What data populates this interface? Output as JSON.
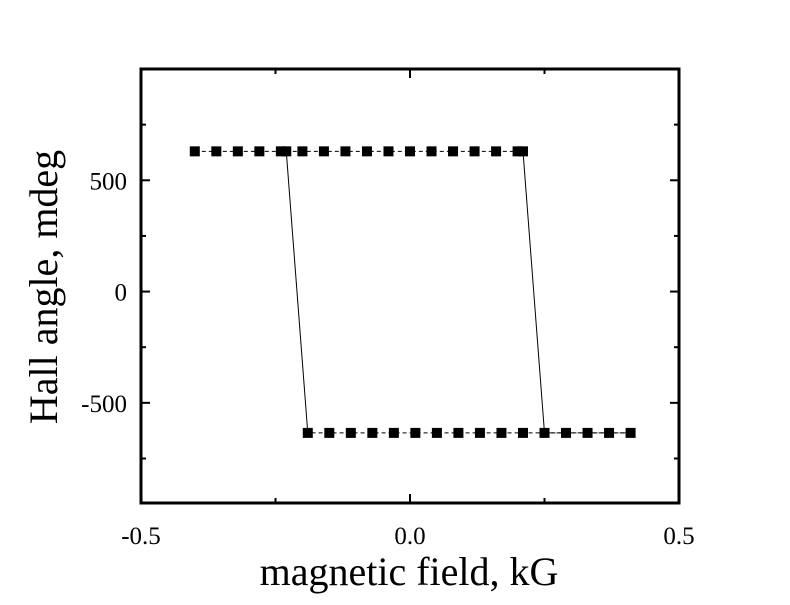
{
  "chart_data": {
    "type": "scatter",
    "title": "",
    "xlabel": "magnetic field, kG",
    "ylabel": "Hall angle, mdeg",
    "xlim": [
      -0.5,
      0.5
    ],
    "ylim": [
      -950,
      1000
    ],
    "x_ticks": [
      -0.5,
      0.0,
      0.5
    ],
    "x_tick_labels": [
      "-0.5",
      "0.0",
      "0.5"
    ],
    "y_ticks": [
      -500,
      0,
      500
    ],
    "y_tick_labels": [
      "-500",
      "0",
      "500"
    ],
    "grid": false,
    "legend": "none",
    "marker": "square",
    "colors": {
      "line": "#000000",
      "marker": "#000000",
      "frame": "#000000"
    },
    "series": [
      {
        "values": [
          {
            "x": -0.4,
            "y": 630
          },
          {
            "x": -0.36,
            "y": 630
          },
          {
            "x": -0.32,
            "y": 630
          },
          {
            "x": -0.28,
            "y": 630
          },
          {
            "x": -0.24,
            "y": 630
          },
          {
            "x": -0.2,
            "y": 630
          },
          {
            "x": -0.16,
            "y": 630
          },
          {
            "x": -0.12,
            "y": 630
          },
          {
            "x": -0.08,
            "y": 630
          },
          {
            "x": -0.04,
            "y": 630
          },
          {
            "x": 0.0,
            "y": 630
          },
          {
            "x": 0.04,
            "y": 630
          },
          {
            "x": 0.08,
            "y": 630
          },
          {
            "x": 0.12,
            "y": 630
          },
          {
            "x": 0.16,
            "y": 630
          },
          {
            "x": 0.2,
            "y": 630
          },
          {
            "x": 0.21,
            "y": 630
          },
          {
            "x": 0.25,
            "y": -635
          },
          {
            "x": 0.29,
            "y": -635
          },
          {
            "x": 0.33,
            "y": -635
          },
          {
            "x": 0.37,
            "y": -635
          },
          {
            "x": 0.41,
            "y": -635
          },
          {
            "x": 0.21,
            "y": -635
          },
          {
            "x": 0.17,
            "y": -635
          },
          {
            "x": 0.13,
            "y": -635
          },
          {
            "x": 0.09,
            "y": -635
          },
          {
            "x": 0.05,
            "y": -635
          },
          {
            "x": 0.01,
            "y": -635
          },
          {
            "x": -0.03,
            "y": -635
          },
          {
            "x": -0.07,
            "y": -635
          },
          {
            "x": -0.11,
            "y": -635
          },
          {
            "x": -0.15,
            "y": -635
          },
          {
            "x": -0.19,
            "y": -635
          },
          {
            "x": -0.23,
            "y": 630
          }
        ],
        "segments": [
          [
            [
              -0.4,
              630
            ],
            [
              0.21,
              630
            ]
          ],
          [
            [
              0.21,
              630
            ],
            [
              0.25,
              -635
            ]
          ],
          [
            [
              0.25,
              -635
            ],
            [
              0.41,
              -635
            ]
          ],
          [
            [
              0.41,
              -635
            ],
            [
              -0.19,
              -635
            ]
          ],
          [
            [
              -0.19,
              -635
            ],
            [
              -0.23,
              630
            ]
          ]
        ]
      }
    ]
  }
}
